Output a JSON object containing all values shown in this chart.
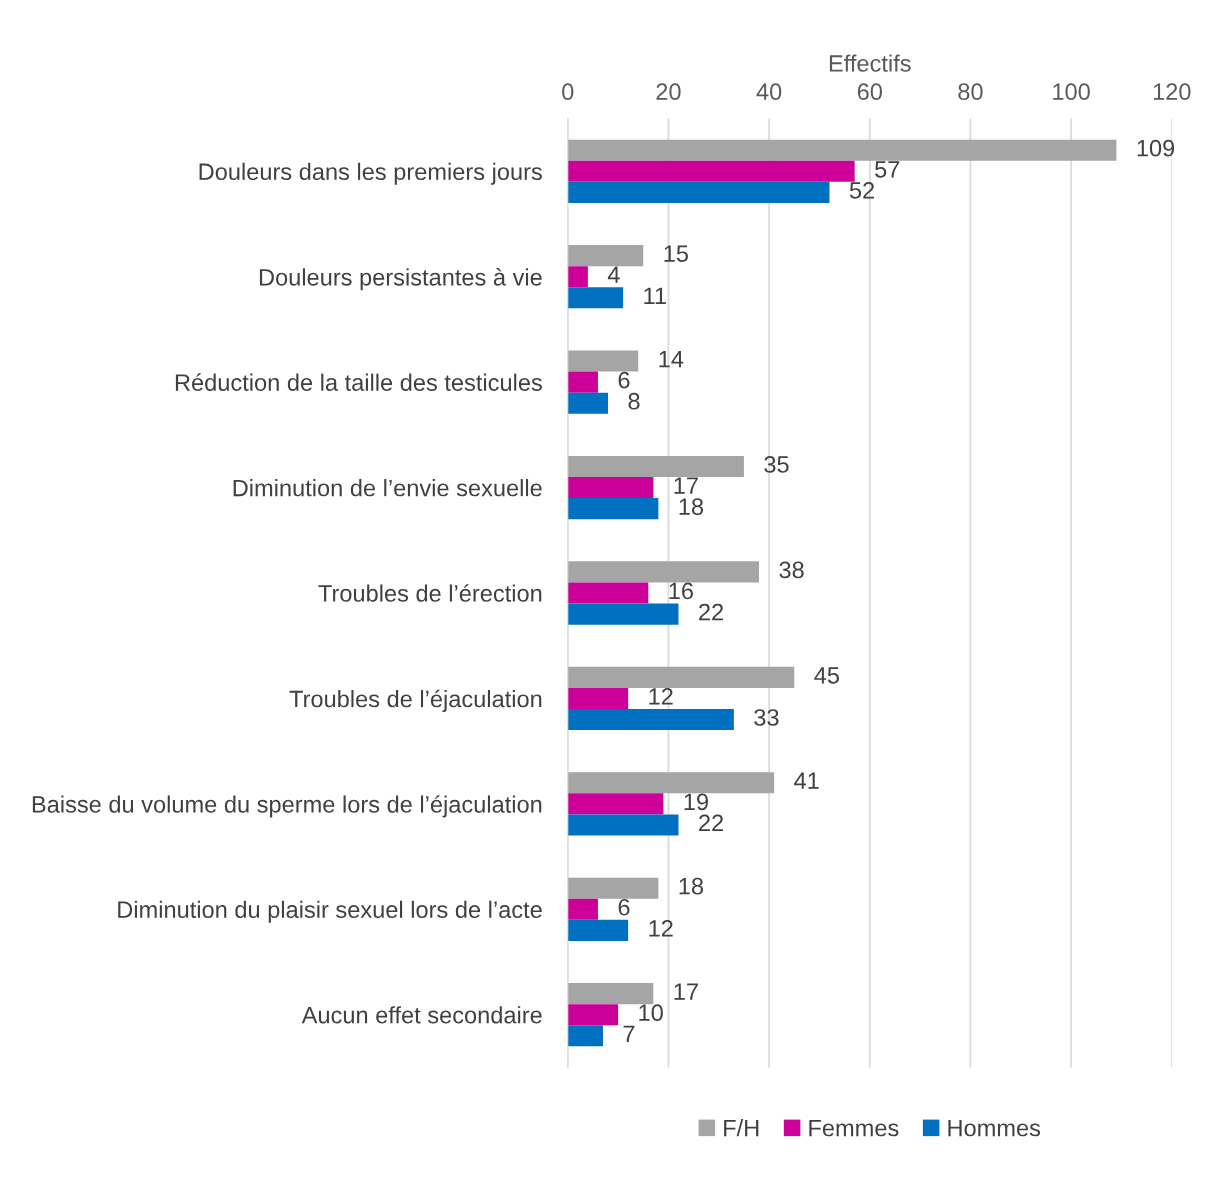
{
  "chart_data": {
    "type": "bar",
    "orientation": "horizontal",
    "xlabel": "Effectifs",
    "categories": [
      "Douleurs dans les premiers jours",
      "Douleurs persistantes à vie",
      "Réduction de la taille des testicules",
      "Diminution de l’envie sexuelle",
      "Troubles de l’érection",
      "Troubles de l’éjaculation",
      "Baisse du volume du sperme lors de l’éjaculation",
      "Diminution du plaisir sexuel lors de l’acte",
      "Aucun effet secondaire"
    ],
    "series": [
      {
        "name": "F/H",
        "color": "#a5a5a5",
        "values": [
          109,
          15,
          14,
          35,
          38,
          45,
          41,
          18,
          17
        ]
      },
      {
        "name": "Femmes",
        "color": "#cc0099",
        "values": [
          57,
          4,
          6,
          17,
          16,
          12,
          19,
          6,
          10
        ]
      },
      {
        "name": "Hommes",
        "color": "#0070c0",
        "values": [
          52,
          11,
          8,
          18,
          22,
          33,
          22,
          12,
          7
        ]
      }
    ],
    "xlim": [
      0,
      120
    ],
    "xticks": [
      0,
      20,
      40,
      60,
      80,
      100,
      120
    ],
    "grid": "x",
    "legend": "bottom",
    "data_labels": true
  }
}
